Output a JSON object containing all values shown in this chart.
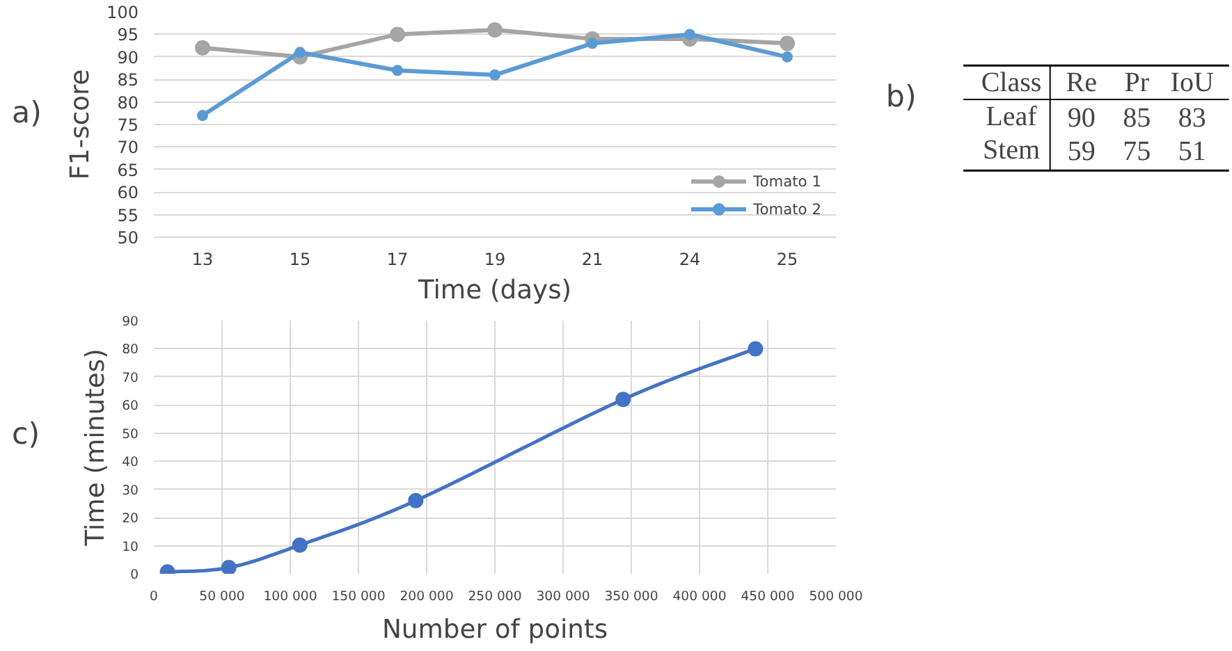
{
  "chart_data": [
    {
      "type": "line",
      "xlabel": "Time (days)",
      "ylabel": "F1-score",
      "annotations": [
        "a)"
      ],
      "categories": [
        "13",
        "15",
        "17",
        "19",
        "21",
        "24",
        "25"
      ],
      "series": [
        {
          "name": "Tomato 1",
          "color": "#a5a5a5",
          "values": [
            92,
            90,
            95,
            96,
            94,
            94,
            93
          ]
        },
        {
          "name": "Tomato 2",
          "color": "#5b9bd5",
          "values": [
            77,
            91,
            87,
            86,
            93,
            95,
            90
          ]
        }
      ],
      "ylim": [
        50,
        100
      ],
      "yticks": [
        50,
        55,
        60,
        65,
        70,
        75,
        80,
        85,
        90,
        95,
        100
      ],
      "grid": "y",
      "legend": "bottom right",
      "marker": "circle",
      "line_style": "solid"
    },
    {
      "type": "other",
      "annotations": [
        "b)",
        "Class",
        "Re",
        "Pr",
        "IoU",
        "Leaf",
        "90",
        "85",
        "83",
        "Stem",
        "59",
        "75",
        "51"
      ]
    },
    {
      "type": "line",
      "xlabel": "Number of points",
      "ylabel": "Time (minutes)",
      "annotations": [
        "c)"
      ],
      "x": [
        10000,
        55000,
        107000,
        192000,
        344000,
        441000
      ],
      "series": [
        {
          "color": "#4472c4",
          "values": [
            0.7,
            2.2,
            10.2,
            26,
            62,
            80
          ]
        }
      ],
      "xlim": [
        0,
        500000
      ],
      "xticks": [
        0,
        {
          "value": 50000,
          "label": "50 000"
        },
        {
          "value": 100000,
          "label": "100 000"
        },
        {
          "value": 150000,
          "label": "150 000"
        },
        {
          "value": 200000,
          "label": "200 000"
        },
        {
          "value": 250000,
          "label": "250 000"
        },
        {
          "value": 300000,
          "label": "300 000"
        },
        {
          "value": 350000,
          "label": "350 000"
        },
        {
          "value": 400000,
          "label": "400 000"
        },
        {
          "value": 450000,
          "label": "450 000"
        },
        {
          "value": 500000,
          "label": "500 000"
        }
      ],
      "ylim": [
        0,
        90
      ],
      "yticks": [
        0,
        10,
        20,
        30,
        40,
        50,
        60,
        70,
        80,
        90
      ],
      "grid": true,
      "marker": "circle",
      "line_style": "solid"
    }
  ]
}
